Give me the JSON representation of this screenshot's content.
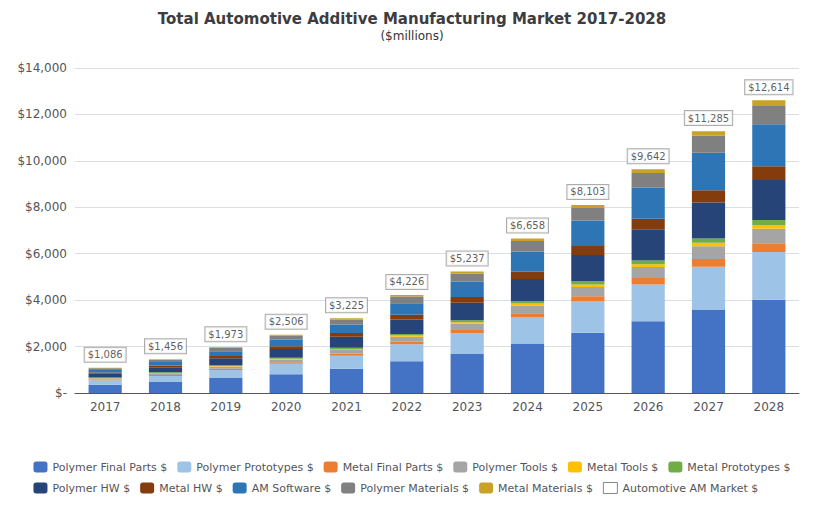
{
  "chart_data": {
    "type": "bar",
    "title": "Total Automotive Additive Manufacturing Market 2017-2028",
    "subtitle": "($millions)",
    "categories": [
      "2017",
      "2018",
      "2019",
      "2020",
      "2021",
      "2022",
      "2023",
      "2024",
      "2025",
      "2026",
      "2027",
      "2028"
    ],
    "stacked": true,
    "grid": true,
    "legend": "bottom",
    "ylim": [
      0,
      14000
    ],
    "yticks": [
      {
        "value": 0,
        "label": "$-"
      },
      {
        "value": 2000,
        "label": "$2,000"
      },
      {
        "value": 4000,
        "label": "$4,000"
      },
      {
        "value": 6000,
        "label": "$6,000"
      },
      {
        "value": 8000,
        "label": "$8,000"
      },
      {
        "value": 10000,
        "label": "$10,000"
      },
      {
        "value": 12000,
        "label": "$12,000"
      },
      {
        "value": 14000,
        "label": "$14,000"
      }
    ],
    "series": [
      {
        "name": "Polymer Final Parts $",
        "color": "#4472C4",
        "values": [
          355,
          476,
          641,
          813,
          1042,
          1363,
          1682,
          2133,
          2594,
          3086,
          3598,
          4022
        ]
      },
      {
        "name": "Polymer Prototypes $",
        "color": "#9DC3E6",
        "values": [
          195,
          261,
          351,
          442,
          563,
          732,
          892,
          1120,
          1346,
          1587,
          1840,
          2054
        ]
      },
      {
        "name": "Metal Final Parts $",
        "color": "#ED7D31",
        "values": [
          28,
          38,
          52,
          67,
          87,
          115,
          144,
          185,
          229,
          279,
          332,
          378
        ]
      },
      {
        "name": "Polymer Tools $",
        "color": "#A5A5A5",
        "values": [
          55,
          73,
          99,
          126,
          162,
          213,
          262,
          332,
          402,
          475,
          552,
          620
        ]
      },
      {
        "name": "Metal Tools $",
        "color": "#FFC000",
        "values": [
          13,
          17,
          23,
          30,
          39,
          52,
          65,
          83,
          102,
          123,
          147,
          167
        ]
      },
      {
        "name": "Metal Prototypes $",
        "color": "#70AD47",
        "values": [
          18,
          24,
          33,
          42,
          54,
          71,
          88,
          112,
          136,
          162,
          190,
          215
        ]
      },
      {
        "name": "Polymer HW $",
        "color": "#264478",
        "values": [
          168,
          224,
          300,
          378,
          481,
          624,
          759,
          950,
          1139,
          1340,
          1549,
          1724
        ]
      },
      {
        "name": "Metal HW $",
        "color": "#843C0C",
        "values": [
          52,
          70,
          95,
          120,
          153,
          200,
          246,
          312,
          379,
          451,
          524,
          588
        ]
      },
      {
        "name": "AM Software $",
        "color": "#2E75B6",
        "values": [
          109,
          148,
          209,
          273,
          369,
          497,
          658,
          873,
          1101,
          1340,
          1619,
          1805
        ]
      },
      {
        "name": "Polymer Materials $",
        "color": "#808080",
        "values": [
          75,
          101,
          137,
          173,
          221,
          288,
          353,
          446,
          539,
          637,
          739,
          826
        ]
      },
      {
        "name": "Metal Materials $",
        "color": "#C9A227",
        "values": [
          18,
          24,
          33,
          42,
          54,
          71,
          88,
          112,
          136,
          162,
          190,
          215
        ]
      },
      {
        "name": "Automotive AM Market $",
        "type": "scatter",
        "color": "#FFFFFF",
        "data_labels": true,
        "values": [
          1086,
          1456,
          1973,
          2506,
          3225,
          4226,
          5237,
          6658,
          8103,
          9642,
          11285,
          12614
        ],
        "value_labels": [
          "$1,086",
          "$1,456",
          "$1,973",
          "$2,506",
          "$3,225",
          "$4,226",
          "$5,237",
          "$6,658",
          "$8,103",
          "$9,642",
          "$11,285",
          "$12,614"
        ]
      }
    ]
  }
}
